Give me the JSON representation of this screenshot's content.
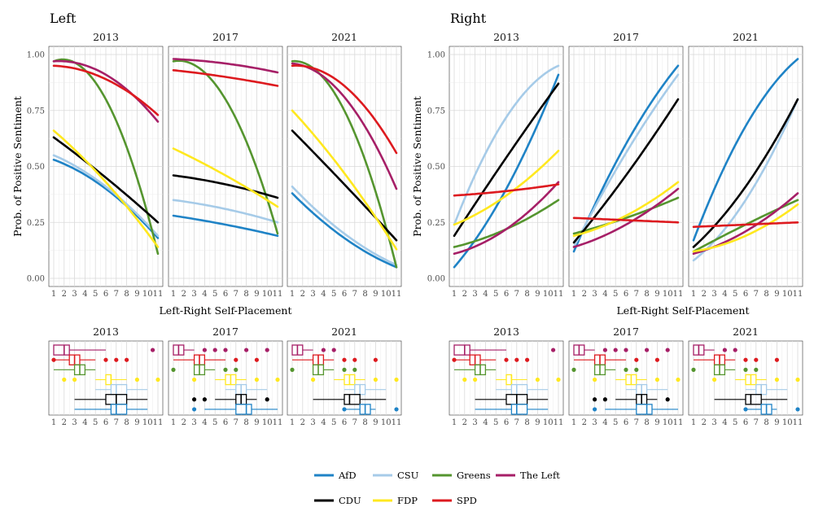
{
  "chart_data": {
    "type": "line",
    "groups": [
      {
        "title": "Left",
        "xlabel": "Left-Right Self-Placement",
        "ylabel": "Prob. of Positive Sentiment",
        "panels": [
          {
            "year": "2013",
            "series": {
              "AfD": [
                0.53,
                0.4,
                0.18
              ],
              "CSU": [
                0.55,
                0.41,
                0.19
              ],
              "Greens": [
                0.97,
                0.8,
                0.11
              ],
              "The Left": [
                0.97,
                0.91,
                0.7
              ],
              "CDU": [
                0.63,
                0.45,
                0.25
              ],
              "FDP": [
                0.66,
                0.43,
                0.14
              ],
              "SPD": [
                0.95,
                0.89,
                0.73
              ]
            }
          },
          {
            "year": "2017",
            "series": {
              "AfD": [
                0.28,
                0.24,
                0.19
              ],
              "CSU": [
                0.35,
                0.31,
                0.25
              ],
              "Greens": [
                0.97,
                0.8,
                0.2
              ],
              "The Left": [
                0.98,
                0.96,
                0.92
              ],
              "CDU": [
                0.46,
                0.42,
                0.36
              ],
              "FDP": [
                0.58,
                0.46,
                0.32
              ],
              "SPD": [
                0.93,
                0.9,
                0.86
              ]
            }
          },
          {
            "year": "2021",
            "series": {
              "AfD": [
                0.38,
                0.18,
                0.05
              ],
              "CSU": [
                0.41,
                0.2,
                0.06
              ],
              "Greens": [
                0.97,
                0.75,
                0.05
              ],
              "The Left": [
                0.96,
                0.81,
                0.4
              ],
              "CDU": [
                0.66,
                0.42,
                0.17
              ],
              "FDP": [
                0.75,
                0.47,
                0.13
              ],
              "SPD": [
                0.95,
                0.86,
                0.56
              ]
            }
          }
        ]
      },
      {
        "title": "Right",
        "xlabel": "Left-Right Self-Placement",
        "ylabel": "Prob. of Positive Sentiment",
        "panels": [
          {
            "year": "2013",
            "series": {
              "AfD": [
                0.05,
                0.4,
                0.91
              ],
              "CSU": [
                0.24,
                0.72,
                0.95
              ],
              "Greens": [
                0.14,
                0.22,
                0.35
              ],
              "The Left": [
                0.11,
                0.22,
                0.43
              ],
              "CDU": [
                0.19,
                0.54,
                0.87
              ],
              "FDP": [
                0.24,
                0.37,
                0.57
              ],
              "SPD": [
                0.37,
                0.39,
                0.42
              ]
            }
          },
          {
            "year": "2017",
            "series": {
              "AfD": [
                0.12,
                0.6,
                0.95
              ],
              "CSU": [
                0.14,
                0.56,
                0.91
              ],
              "Greens": [
                0.2,
                0.27,
                0.36
              ],
              "The Left": [
                0.14,
                0.24,
                0.4
              ],
              "CDU": [
                0.16,
                0.46,
                0.8
              ],
              "FDP": [
                0.19,
                0.28,
                0.43
              ],
              "SPD": [
                0.27,
                0.26,
                0.25
              ]
            }
          },
          {
            "year": "2021",
            "series": {
              "AfD": [
                0.17,
                0.68,
                0.98
              ],
              "CSU": [
                0.08,
                0.35,
                0.8
              ],
              "Greens": [
                0.12,
                0.24,
                0.35
              ],
              "The Left": [
                0.11,
                0.21,
                0.38
              ],
              "CDU": [
                0.14,
                0.41,
                0.8
              ],
              "FDP": [
                0.12,
                0.19,
                0.33
              ],
              "SPD": [
                0.23,
                0.24,
                0.25
              ]
            }
          }
        ]
      }
    ],
    "x_ticks": [
      1,
      2,
      3,
      4,
      5,
      6,
      7,
      8,
      9,
      10,
      11
    ],
    "y_ticks": [
      0.0,
      0.25,
      0.5,
      0.75,
      1.0
    ],
    "y_tick_labels": [
      "0.00",
      "0.25",
      "0.50",
      "0.75",
      "1.00"
    ],
    "ylim": [
      0,
      1
    ],
    "xlim": [
      1,
      11
    ],
    "legend": {
      "position": "bottom",
      "entries": [
        {
          "name": "AfD",
          "color": "#1f83c6"
        },
        {
          "name": "CSU",
          "color": "#a6cbe8"
        },
        {
          "name": "Greens",
          "color": "#55952f"
        },
        {
          "name": "The Left",
          "color": "#a61f67"
        },
        {
          "name": "CDU",
          "color": "#000000"
        },
        {
          "name": "FDP",
          "color": "#ffe81f"
        },
        {
          "name": "SPD",
          "color": "#dd1a1f"
        }
      ]
    },
    "boxplot_order": [
      "The Left",
      "SPD",
      "Greens",
      "FDP",
      "CSU",
      "CDU",
      "AfD"
    ],
    "boxplots": {
      "2013": {
        "The Left": {
          "q1": 1,
          "med": 2,
          "q3": 2.5,
          "wlo": 1,
          "whi": 6,
          "out": [
            10.5
          ]
        },
        "SPD": {
          "q1": 2.5,
          "med": 3,
          "q3": 3.5,
          "wlo": 1,
          "whi": 5,
          "out": [
            1,
            6,
            7,
            8
          ]
        },
        "Greens": {
          "q1": 3,
          "med": 3.5,
          "q3": 4,
          "wlo": 1,
          "whi": 5,
          "out": []
        },
        "FDP": {
          "q1": 6,
          "med": 6.5,
          "q3": 6.5,
          "wlo": 5,
          "whi": 8,
          "out": [
            2,
            3,
            9,
            11
          ]
        },
        "CSU": {
          "q1": 6.5,
          "med": 7,
          "q3": 8,
          "wlo": 5,
          "whi": 10,
          "out": []
        },
        "CDU": {
          "q1": 6,
          "med": 7,
          "q3": 8,
          "wlo": 3,
          "whi": 10,
          "out": []
        },
        "AfD": {
          "q1": 6.5,
          "med": 7,
          "q3": 8,
          "wlo": 3,
          "whi": 10,
          "out": []
        }
      },
      "2017": {
        "The Left": {
          "q1": 1,
          "med": 1.5,
          "q3": 2,
          "wlo": 1,
          "whi": 3,
          "out": [
            4,
            5,
            6,
            8,
            10
          ]
        },
        "SPD": {
          "q1": 3,
          "med": 3.5,
          "q3": 4,
          "wlo": 1,
          "whi": 6,
          "out": [
            7,
            9
          ]
        },
        "Greens": {
          "q1": 3,
          "med": 3.5,
          "q3": 4,
          "wlo": 3,
          "whi": 5,
          "out": [
            1,
            6,
            7
          ]
        },
        "FDP": {
          "q1": 6,
          "med": 6.5,
          "q3": 7,
          "wlo": 5,
          "whi": 8,
          "out": [
            3,
            9,
            11
          ]
        },
        "CSU": {
          "q1": 7,
          "med": 7.5,
          "q3": 8,
          "wlo": 6,
          "whi": 10,
          "out": []
        },
        "CDU": {
          "q1": 7,
          "med": 7.5,
          "q3": 8,
          "wlo": 5,
          "whi": 9,
          "out": [
            3,
            4,
            10
          ]
        },
        "AfD": {
          "q1": 7,
          "med": 8,
          "q3": 8.5,
          "wlo": 4,
          "whi": 11,
          "out": [
            3
          ]
        }
      },
      "2021": {
        "The Left": {
          "q1": 1,
          "med": 1.5,
          "q3": 2,
          "wlo": 1,
          "whi": 3,
          "out": [
            4,
            5
          ]
        },
        "SPD": {
          "q1": 3,
          "med": 3.5,
          "q3": 4,
          "wlo": 1,
          "whi": 5,
          "out": [
            6,
            7,
            9
          ]
        },
        "Greens": {
          "q1": 3,
          "med": 3.5,
          "q3": 4,
          "wlo": 3,
          "whi": 5,
          "out": [
            1,
            6,
            7
          ]
        },
        "FDP": {
          "q1": 6,
          "med": 6.5,
          "q3": 7,
          "wlo": 5,
          "whi": 8,
          "out": [
            3,
            9,
            11
          ]
        },
        "CSU": {
          "q1": 7,
          "med": 7.5,
          "q3": 8,
          "wlo": 6,
          "whi": 10,
          "out": []
        },
        "CDU": {
          "q1": 6,
          "med": 6.5,
          "q3": 7.5,
          "wlo": 3,
          "whi": 10,
          "out": []
        },
        "AfD": {
          "q1": 7.5,
          "med": 8,
          "q3": 8.5,
          "wlo": 6,
          "whi": 9,
          "out": [
            6,
            11
          ]
        }
      }
    }
  }
}
